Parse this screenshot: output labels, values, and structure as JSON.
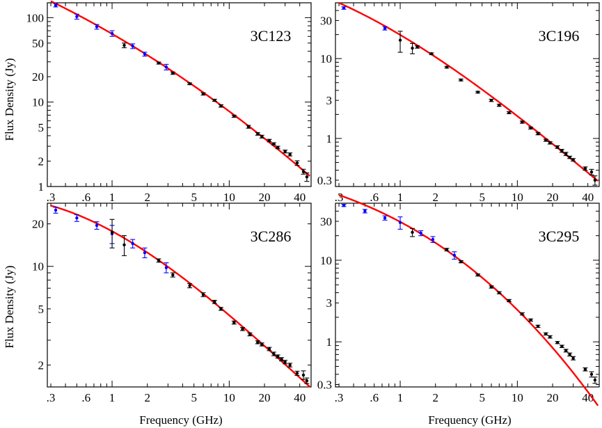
{
  "figure": {
    "ylabel": "Flux Density (Jy)",
    "xlabel": "Frequency (GHz)"
  },
  "colors": {
    "fit_line": "#ff0000",
    "low_freq_points": "#0000ff",
    "high_freq_points": "#000000",
    "axes": "#000000"
  },
  "chart_data": [
    {
      "type": "scatter",
      "source": "3C123",
      "x_scale": "log",
      "y_scale": "log",
      "xlim": [
        0.28,
        50
      ],
      "ylim": [
        1,
        150
      ],
      "x_ticks": [
        ".3",
        ".6",
        "1",
        "2",
        "5",
        "10",
        "20",
        "40"
      ],
      "x_tick_values": [
        0.3,
        0.6,
        1,
        2,
        5,
        10,
        20,
        40
      ],
      "y_ticks": [
        "1",
        "2",
        "5",
        "10",
        "20",
        "50",
        "100"
      ],
      "y_tick_values": [
        1,
        2,
        5,
        10,
        20,
        50,
        100
      ],
      "fit_model": "cubic polynomial in log10(S) vs log10(nu)",
      "fit_coefficients": [
        1.8077,
        -0.8018,
        -0.1157,
        0.0
      ],
      "series": [
        {
          "color": "blue",
          "x": [
            0.33,
            0.5,
            0.74,
            1.0,
            1.5,
            1.9,
            2.9
          ],
          "y": [
            140,
            103,
            78,
            65,
            46,
            37,
            26
          ],
          "err": [
            6,
            7,
            5,
            5,
            3,
            2,
            2
          ]
        },
        {
          "color": "black",
          "x": [
            1.27,
            2.5,
            3.3,
            4.6,
            6.0,
            7.5,
            8.5,
            11.0,
            14.6,
            17.5,
            19.0,
            22.0,
            24.0,
            26.0,
            30.0,
            33.0,
            38.0,
            43.0,
            46.0
          ],
          "y": [
            47,
            29,
            22,
            16.5,
            12.5,
            10.5,
            9.0,
            6.8,
            5.1,
            4.2,
            3.9,
            3.5,
            3.2,
            2.9,
            2.6,
            2.4,
            1.9,
            1.5,
            1.3
          ],
          "err": [
            3,
            0.8,
            0.7,
            0.4,
            0.4,
            0.3,
            0.3,
            0.2,
            0.2,
            0.15,
            0.15,
            0.12,
            0.1,
            0.1,
            0.1,
            0.1,
            0.12,
            0.1,
            0.15
          ]
        }
      ]
    },
    {
      "type": "scatter",
      "source": "3C196",
      "x_scale": "log",
      "y_scale": "log",
      "xlim": [
        0.28,
        50
      ],
      "ylim": [
        0.25,
        50
      ],
      "x_ticks": [
        ".3",
        ".6",
        "1",
        "2",
        "5",
        "10",
        "20",
        "40"
      ],
      "x_tick_values": [
        0.3,
        0.6,
        1,
        2,
        5,
        10,
        20,
        40
      ],
      "y_ticks": [
        "0.3",
        "1",
        "3",
        "10",
        "30"
      ],
      "y_tick_values": [
        0.3,
        1,
        3,
        10,
        30
      ],
      "fit_model": "cubic polynomial in log10(S) vs log10(nu)",
      "fit_coefficients": [
        1.2969,
        -0.869,
        -0.1788,
        0.0305
      ],
      "series": [
        {
          "color": "blue",
          "x": [
            0.33,
            0.74
          ],
          "y": [
            43,
            24
          ],
          "err": [
            1.5,
            1.2
          ]
        },
        {
          "color": "black",
          "x": [
            1.0,
            1.27,
            1.4,
            1.85,
            2.5,
            3.3,
            4.6,
            6.0,
            7.0,
            8.5,
            11.0,
            13.0,
            15.0,
            17.5,
            19.0,
            22.0,
            24.0,
            26.0,
            28.0,
            30.0,
            38.0,
            43.0,
            46.0
          ],
          "y": [
            17,
            13.5,
            14,
            11.5,
            7.8,
            5.4,
            3.8,
            3.0,
            2.6,
            2.1,
            1.6,
            1.35,
            1.15,
            0.95,
            0.88,
            0.78,
            0.7,
            0.64,
            0.58,
            0.54,
            0.42,
            0.38,
            0.3
          ],
          "err": [
            5,
            2,
            0.5,
            0.3,
            0.2,
            0.15,
            0.1,
            0.1,
            0.08,
            0.06,
            0.05,
            0.04,
            0.04,
            0.03,
            0.03,
            0.03,
            0.03,
            0.03,
            0.02,
            0.02,
            0.02,
            0.03,
            0.04
          ]
        }
      ]
    },
    {
      "type": "scatter",
      "source": "3C286",
      "x_scale": "log",
      "y_scale": "log",
      "xlim": [
        0.28,
        50
      ],
      "ylim": [
        1.4,
        28
      ],
      "x_ticks": [
        ".3",
        ".6",
        "1",
        "2",
        "5",
        "10",
        "20",
        "40"
      ],
      "x_tick_values": [
        0.3,
        0.6,
        1,
        2,
        5,
        10,
        20,
        40
      ],
      "y_ticks": [
        "2",
        "5",
        "10",
        "20"
      ],
      "y_tick_values": [
        2,
        5,
        10,
        20
      ],
      "fit_model": "cubic polynomial in log10(S) vs log10(nu)",
      "fit_coefficients": [
        1.2485,
        -0.4507,
        -0.1798,
        0.0357
      ],
      "series": [
        {
          "color": "blue",
          "x": [
            0.33,
            0.5,
            0.74,
            1.0,
            1.5,
            1.9,
            2.9
          ],
          "y": [
            25,
            22,
            19.5,
            17,
            14.5,
            12.5,
            9.8
          ],
          "err": [
            1.2,
            1.2,
            1.2,
            2.5,
            1.0,
            1.0,
            0.8
          ]
        },
        {
          "color": "black",
          "x": [
            1.0,
            1.27,
            2.5,
            3.3,
            4.6,
            6.0,
            7.5,
            8.5,
            11.0,
            13.0,
            15.0,
            17.5,
            19.0,
            22.0,
            24.0,
            26.0,
            28.0,
            30.0,
            33.0,
            38.0,
            43.0,
            46.0
          ],
          "y": [
            17.5,
            14.2,
            11.0,
            8.7,
            7.3,
            6.3,
            5.6,
            5.0,
            4.0,
            3.6,
            3.3,
            2.9,
            2.8,
            2.6,
            2.4,
            2.3,
            2.2,
            2.1,
            2.0,
            1.75,
            1.7,
            1.55
          ],
          "err": [
            4,
            2.3,
            0.3,
            0.3,
            0.25,
            0.2,
            0.15,
            0.12,
            0.1,
            0.09,
            0.08,
            0.07,
            0.07,
            0.07,
            0.07,
            0.06,
            0.06,
            0.06,
            0.06,
            0.06,
            0.12,
            0.07
          ]
        }
      ]
    },
    {
      "type": "scatter",
      "source": "3C295",
      "x_scale": "log",
      "y_scale": "log",
      "xlim": [
        0.28,
        50
      ],
      "ylim": [
        0.28,
        50
      ],
      "x_ticks": [
        ".3",
        ".6",
        "1",
        "2",
        "5",
        "10",
        "20",
        "40"
      ],
      "x_tick_values": [
        0.3,
        0.6,
        1,
        2,
        5,
        10,
        20,
        40
      ],
      "y_ticks": [
        "0.3",
        "1",
        "3",
        "10",
        "30"
      ],
      "y_tick_values": [
        0.3,
        1,
        3,
        10,
        30
      ],
      "fit_model": "cubic polynomial in log10(S) vs log10(nu)",
      "fit_coefficients": [
        1.4701,
        -0.7658,
        -0.278,
        -0.0347
      ],
      "series": [
        {
          "color": "blue",
          "x": [
            0.33,
            0.5,
            0.74,
            1.0,
            1.5,
            1.9,
            2.9
          ],
          "y": [
            47,
            40,
            33,
            29,
            21.5,
            18,
            11.5
          ],
          "err": [
            1.5,
            2,
            2,
            5,
            1.5,
            1.5,
            1.2
          ]
        },
        {
          "color": "black",
          "x": [
            1.27,
            2.5,
            3.3,
            4.6,
            6.0,
            7.0,
            8.5,
            11.0,
            13.0,
            15.0,
            17.5,
            19.0,
            22.0,
            24.0,
            26.0,
            28.0,
            30.0,
            38.0,
            43.0,
            46.0
          ],
          "y": [
            22,
            13.5,
            9.6,
            6.6,
            4.7,
            4.0,
            3.2,
            2.2,
            1.85,
            1.55,
            1.25,
            1.15,
            0.98,
            0.88,
            0.78,
            0.7,
            0.63,
            0.46,
            0.4,
            0.34
          ],
          "err": [
            2.5,
            0.5,
            0.3,
            0.2,
            0.15,
            0.12,
            0.1,
            0.07,
            0.06,
            0.05,
            0.04,
            0.04,
            0.03,
            0.03,
            0.03,
            0.03,
            0.03,
            0.02,
            0.03,
            0.03
          ]
        }
      ]
    }
  ]
}
